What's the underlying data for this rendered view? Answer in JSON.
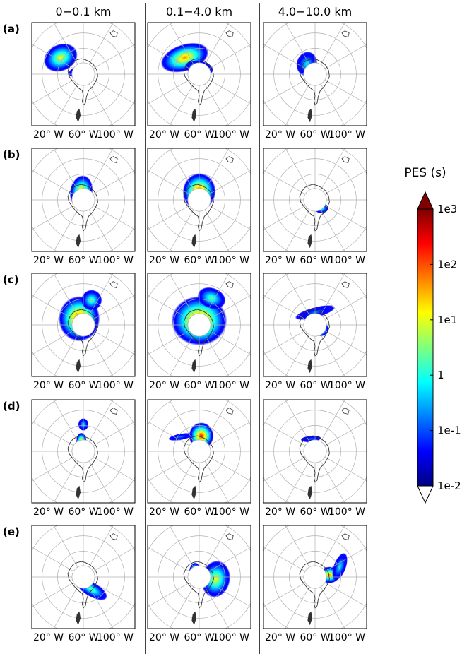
{
  "chart_data": {
    "type": "heatmap",
    "projection": "south-polar-stereographic",
    "columns": [
      {
        "id": "low",
        "title": "0−0.1 km"
      },
      {
        "id": "mid",
        "title": "0.1−4.0 km"
      },
      {
        "id": "high",
        "title": "4.0−10.0 km"
      }
    ],
    "rows": [
      {
        "id": "a",
        "label": "(a)"
      },
      {
        "id": "b",
        "label": "(b)"
      },
      {
        "id": "c",
        "label": "(c)"
      },
      {
        "id": "d",
        "label": "(d)"
      },
      {
        "id": "e",
        "label": "(e)"
      }
    ],
    "lon_tick_labels": [
      "20° W",
      "60° W",
      "100° W"
    ],
    "meridian_spacing_deg": 30,
    "colorbar": {
      "title": "PES (s)",
      "scale": "log",
      "range": [
        0.01,
        1000
      ],
      "ticks": [
        {
          "value": 1000,
          "label": "1e3"
        },
        {
          "value": 100,
          "label": "1e2"
        },
        {
          "value": 10,
          "label": "1e1"
        },
        {
          "value": 1,
          "label": "1"
        },
        {
          "value": 0.1,
          "label": "1e-1"
        },
        {
          "value": 0.01,
          "label": "1e-2"
        }
      ],
      "extend": "both",
      "colormap": "jet",
      "colors": [
        "#00007f",
        "#0000ff",
        "#007fff",
        "#00ffff",
        "#7fff7f",
        "#ffff00",
        "#ff7f00",
        "#ff0000",
        "#7f0000"
      ]
    },
    "panels": [
      {
        "row": "a",
        "col": "low",
        "plumes": [
          {
            "cx": 0.28,
            "cy": 0.34,
            "rx": 0.17,
            "ry": 0.13,
            "rot": -25,
            "peak": 0.6
          },
          {
            "cx": 0.45,
            "cy": 0.47,
            "rx": 0.1,
            "ry": 0.05,
            "rot": -20,
            "peak": 0.45
          }
        ]
      },
      {
        "row": "a",
        "col": "mid",
        "plumes": [
          {
            "cx": 0.36,
            "cy": 0.34,
            "rx": 0.24,
            "ry": 0.13,
            "rot": -18,
            "peak": 0.75
          },
          {
            "cx": 0.5,
            "cy": 0.44,
            "rx": 0.14,
            "ry": 0.07,
            "rot": 10,
            "peak": 0.55
          }
        ]
      },
      {
        "row": "a",
        "col": "high",
        "plumes": [
          {
            "cx": 0.42,
            "cy": 0.4,
            "rx": 0.1,
            "ry": 0.12,
            "rot": 15,
            "peak": 0.4
          }
        ]
      },
      {
        "row": "b",
        "col": "low",
        "plumes": [
          {
            "cx": 0.48,
            "cy": 0.42,
            "rx": 0.11,
            "ry": 0.16,
            "rot": 10,
            "peak": 0.8
          }
        ]
      },
      {
        "row": "b",
        "col": "mid",
        "plumes": [
          {
            "cx": 0.5,
            "cy": 0.42,
            "rx": 0.16,
            "ry": 0.18,
            "rot": 5,
            "peak": 0.9
          }
        ]
      },
      {
        "row": "b",
        "col": "high",
        "plumes": [
          {
            "cx": 0.56,
            "cy": 0.58,
            "rx": 0.07,
            "ry": 0.05,
            "rot": 0,
            "peak": 0.45
          }
        ]
      },
      {
        "row": "c",
        "col": "low",
        "plumes": [
          {
            "cx": 0.46,
            "cy": 0.44,
            "rx": 0.2,
            "ry": 0.22,
            "rot": 0,
            "peak": 0.85
          },
          {
            "cx": 0.58,
            "cy": 0.26,
            "rx": 0.1,
            "ry": 0.1,
            "rot": 20,
            "peak": 0.45
          }
        ]
      },
      {
        "row": "c",
        "col": "mid",
        "plumes": [
          {
            "cx": 0.5,
            "cy": 0.46,
            "rx": 0.27,
            "ry": 0.24,
            "rot": 0,
            "peak": 0.92
          },
          {
            "cx": 0.62,
            "cy": 0.24,
            "rx": 0.14,
            "ry": 0.1,
            "rot": 20,
            "peak": 0.45
          }
        ]
      },
      {
        "row": "c",
        "col": "high",
        "plumes": [
          {
            "cx": 0.56,
            "cy": 0.54,
            "rx": 0.07,
            "ry": 0.07,
            "rot": 0,
            "peak": 0.7
          },
          {
            "cx": 0.5,
            "cy": 0.38,
            "rx": 0.2,
            "ry": 0.05,
            "rot": -15,
            "peak": 0.3
          }
        ]
      },
      {
        "row": "d",
        "col": "low",
        "plumes": [
          {
            "cx": 0.48,
            "cy": 0.4,
            "rx": 0.05,
            "ry": 0.08,
            "rot": 0,
            "peak": 0.75
          },
          {
            "cx": 0.5,
            "cy": 0.24,
            "rx": 0.05,
            "ry": 0.06,
            "rot": 0,
            "peak": 0.35
          }
        ]
      },
      {
        "row": "d",
        "col": "mid",
        "plumes": [
          {
            "cx": 0.52,
            "cy": 0.35,
            "rx": 0.12,
            "ry": 0.13,
            "rot": 0,
            "peak": 0.85
          },
          {
            "cx": 0.32,
            "cy": 0.36,
            "rx": 0.12,
            "ry": 0.03,
            "rot": -10,
            "peak": 0.3
          }
        ]
      },
      {
        "row": "d",
        "col": "high",
        "plumes": [
          {
            "cx": 0.46,
            "cy": 0.38,
            "rx": 0.1,
            "ry": 0.03,
            "rot": -5,
            "peak": 0.3
          }
        ]
      },
      {
        "row": "e",
        "col": "low",
        "plumes": [
          {
            "cx": 0.58,
            "cy": 0.62,
            "rx": 0.17,
            "ry": 0.07,
            "rot": 30,
            "peak": 0.45
          },
          {
            "cx": 0.48,
            "cy": 0.45,
            "rx": 0.04,
            "ry": 0.06,
            "rot": 0,
            "peak": 0.8
          }
        ]
      },
      {
        "row": "e",
        "col": "mid",
        "plumes": [
          {
            "cx": 0.66,
            "cy": 0.52,
            "rx": 0.14,
            "ry": 0.18,
            "rot": 10,
            "peak": 0.6
          },
          {
            "cx": 0.46,
            "cy": 0.46,
            "rx": 0.06,
            "ry": 0.1,
            "rot": 0,
            "peak": 0.85
          }
        ]
      },
      {
        "row": "e",
        "col": "high",
        "plumes": [
          {
            "cx": 0.64,
            "cy": 0.48,
            "rx": 0.1,
            "ry": 0.08,
            "rot": 0,
            "peak": 0.75
          },
          {
            "cx": 0.74,
            "cy": 0.4,
            "rx": 0.06,
            "ry": 0.14,
            "rot": 20,
            "peak": 0.35
          }
        ]
      }
    ]
  }
}
